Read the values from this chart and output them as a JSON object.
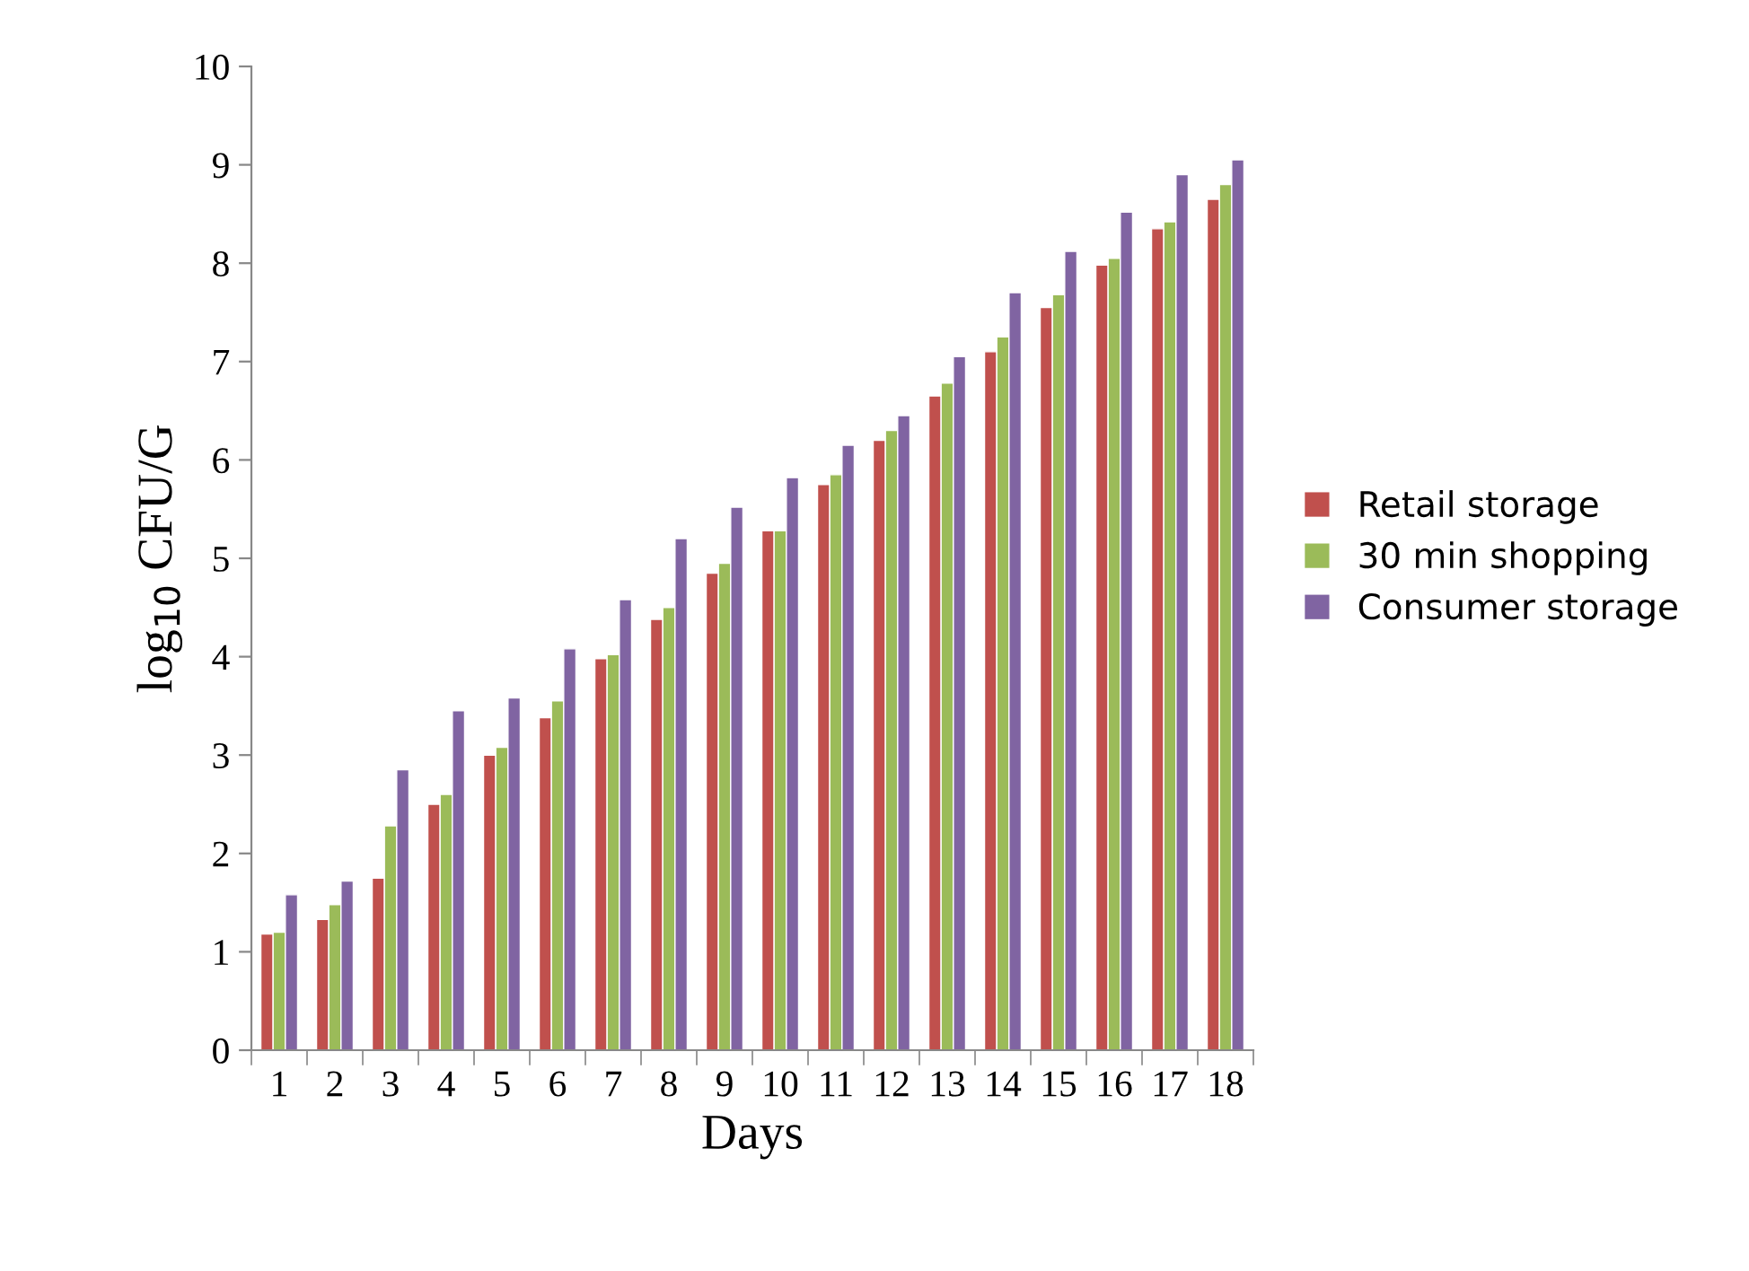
{
  "chart_data": {
    "type": "bar",
    "xlabel": "Days",
    "ylabel": "log$_{10}$ CFU/G",
    "categories": [
      "1",
      "2",
      "3",
      "4",
      "5",
      "6",
      "7",
      "8",
      "9",
      "10",
      "11",
      "12",
      "13",
      "14",
      "15",
      "16",
      "17",
      "18"
    ],
    "series": [
      {
        "name": "Retail storage",
        "color": "#c0504d",
        "values": [
          1.18,
          1.33,
          1.75,
          2.5,
          3.0,
          3.38,
          3.98,
          4.38,
          4.85,
          5.28,
          5.75,
          6.2,
          6.65,
          7.1,
          7.55,
          7.98,
          8.35,
          8.65
        ]
      },
      {
        "name": "30 min shopping",
        "color": "#9bbb59",
        "values": [
          1.2,
          1.48,
          2.28,
          2.6,
          3.08,
          3.55,
          4.02,
          4.5,
          4.95,
          5.28,
          5.85,
          6.3,
          6.78,
          7.25,
          7.68,
          8.05,
          8.42,
          8.8
        ]
      },
      {
        "name": "Consumer storage",
        "color": "#8064a2",
        "values": [
          1.58,
          1.72,
          2.85,
          3.45,
          3.58,
          4.08,
          4.58,
          5.2,
          5.52,
          5.82,
          6.15,
          6.45,
          7.05,
          7.7,
          8.12,
          8.52,
          8.9,
          9.05
        ]
      }
    ],
    "ylim": [
      0,
      10
    ],
    "yticks": [
      0,
      1,
      2,
      3,
      4,
      5,
      6,
      7,
      8,
      9,
      10
    ],
    "grid": false,
    "legend": "right"
  }
}
